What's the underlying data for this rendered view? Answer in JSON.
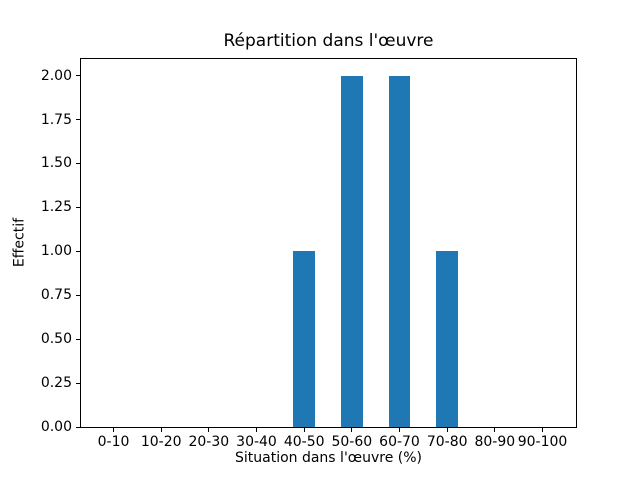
{
  "chart_data": {
    "type": "bar",
    "title": "Répartition dans l'œuvre",
    "xlabel": "Situation dans l'œuvre (%)",
    "ylabel": "Effectif",
    "categories": [
      "0-10",
      "10-20",
      "20-30",
      "30-40",
      "40-50",
      "50-60",
      "60-70",
      "70-80",
      "80-90",
      "90-100"
    ],
    "values": [
      0,
      0,
      0,
      0,
      1,
      2,
      2,
      1,
      0,
      0
    ],
    "yticks": [
      {
        "value": 0.0,
        "label": "0.00"
      },
      {
        "value": 0.25,
        "label": "0.25"
      },
      {
        "value": 0.5,
        "label": "0.50"
      },
      {
        "value": 0.75,
        "label": "0.75"
      },
      {
        "value": 1.0,
        "label": "1.00"
      },
      {
        "value": 1.25,
        "label": "1.25"
      },
      {
        "value": 1.5,
        "label": "1.50"
      },
      {
        "value": 1.75,
        "label": "1.75"
      },
      {
        "value": 2.0,
        "label": "2.00"
      }
    ],
    "ylim": [
      0,
      2.1
    ],
    "bar_color": "#1f77b4",
    "axis_color": "#000000",
    "background_color": "#ffffff",
    "grid": false,
    "legend_position": "none"
  }
}
